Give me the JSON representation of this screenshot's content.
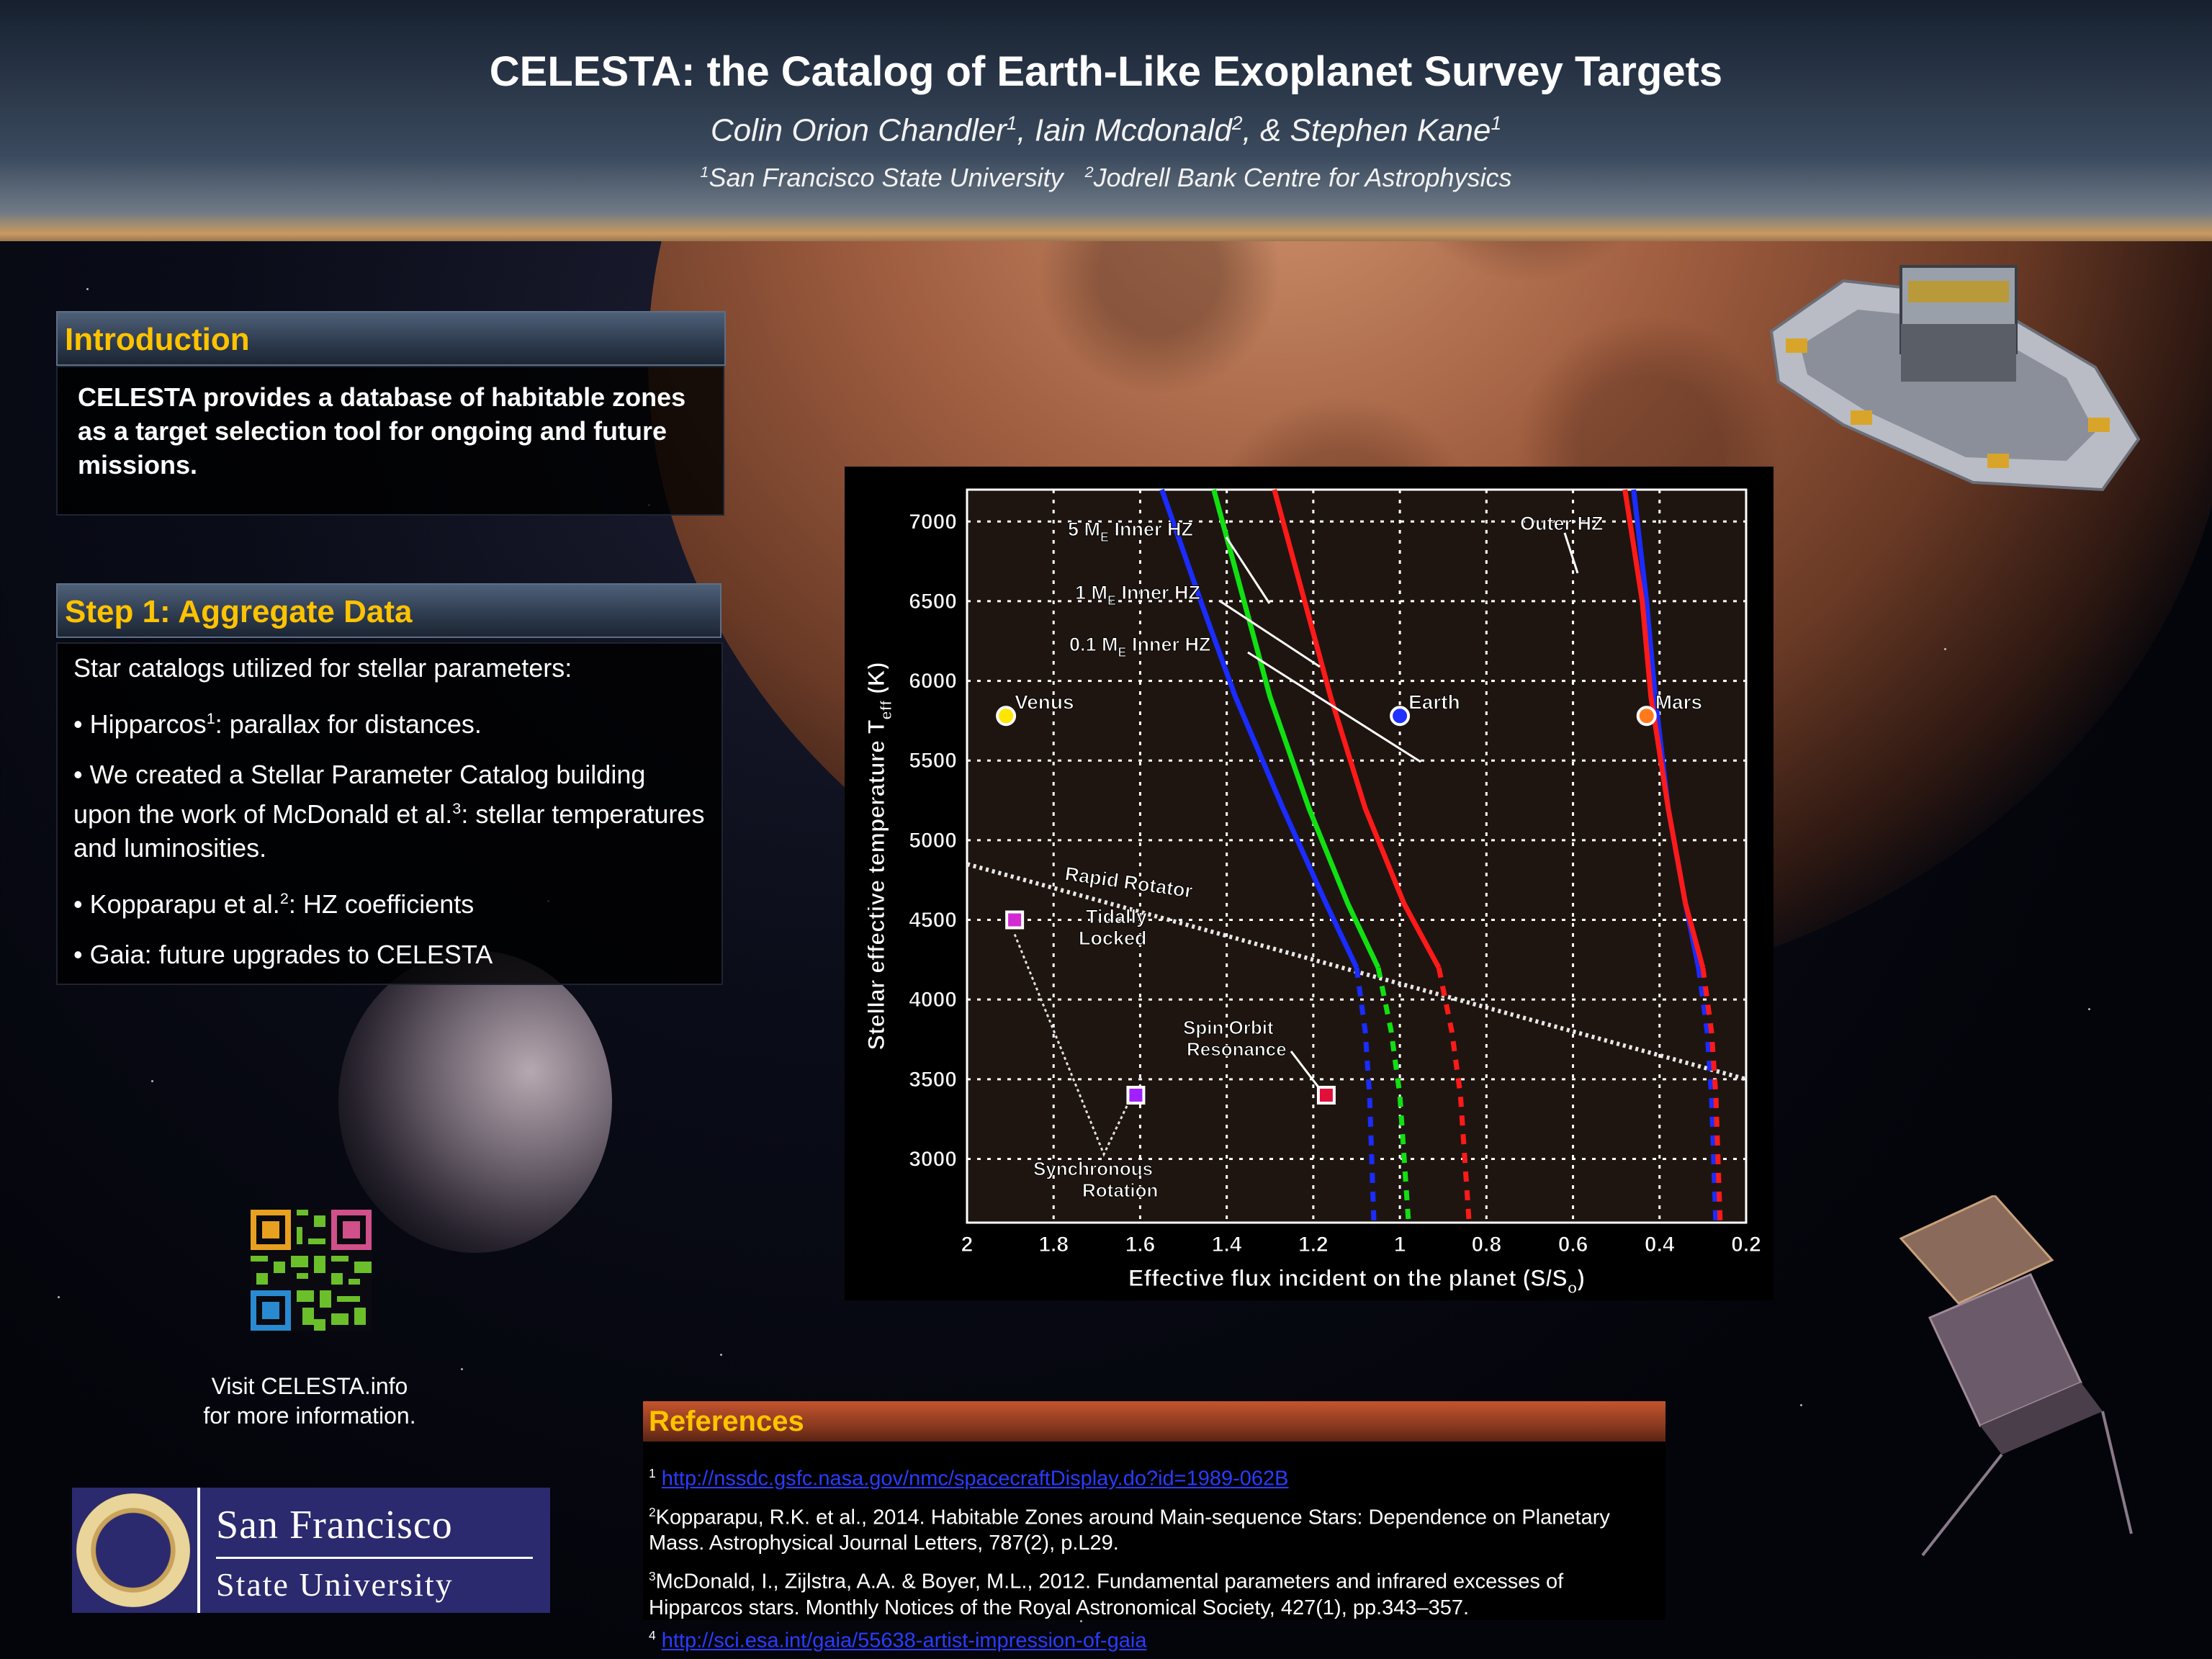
{
  "header": {
    "title": "CELESTA: the Catalog of Earth-Like Exoplanet Survey Targets",
    "author1": "Colin Orion Chandler",
    "author1_sup": "1",
    "author2": ", Iain Mcdonald",
    "author2_sup": "2",
    "author3": ", & Stephen Kane",
    "author3_sup": "1",
    "affil1_sup": "1",
    "affil1": "San Francisco State University",
    "affil2_sup": "2",
    "affil2": "Jodrell Bank Centre for Astrophysics"
  },
  "introduction": {
    "heading": "Introduction",
    "text": "CELESTA provides a database of habitable zones as a target selection tool for ongoing and future missions."
  },
  "step1": {
    "heading": "Step 1: Aggregate Data",
    "items": [
      {
        "pre": "Star catalogs utilized for stellar parameters:",
        "sup": "",
        "post": ""
      },
      {
        "pre": "• Hipparcos",
        "sup": "1",
        "post": ": parallax for distances."
      },
      {
        "pre": "• We created a Stellar Parameter Catalog building upon the work of McDonald et al.",
        "sup": "3",
        "post": ": stellar temperatures and luminosities."
      },
      {
        "pre": "• Kopparapu et al.",
        "sup": "2",
        "post": ": HZ coefficients"
      },
      {
        "pre": "• Gaia: future upgrades to CELESTA",
        "sup": "",
        "post": ""
      }
    ]
  },
  "visit": {
    "line1": "Visit CELESTA.info",
    "line2": "for more information."
  },
  "logo": {
    "line1": "San Francisco",
    "line2": "State University"
  },
  "references": {
    "heading": "References",
    "items": [
      {
        "sup": "1",
        "text": "",
        "link": "http://nssdc.gsfc.nasa.gov/nmc/spacecraftDisplay.do?id=1989-062B"
      },
      {
        "sup": "2",
        "text": "Kopparapu, R.K. et al., 2014. Habitable Zones around Main-sequence Stars: Dependence on Planetary Mass. Astrophysical Journal Letters, 787(2), p.L29.",
        "link": ""
      },
      {
        "sup": "3",
        "text": "McDonald, I., Zijlstra, A.A. & Boyer, M.L., 2012. Fundamental parameters and infrared excesses of Hipparcos stars. Monthly Notices of the Royal Astronomical Society, 427(1), pp.343–357.",
        "link": ""
      },
      {
        "sup": "4",
        "text": "",
        "link": "http://sci.esa.int/gaia/55638-artist-impression-of-gaia"
      }
    ]
  },
  "colors": {
    "heading_accent": "#ffc300",
    "earth": "#2030ff",
    "venus": "#ffe600",
    "mars": "#ff7a1a"
  },
  "chart_data": {
    "type": "line",
    "xlabel": "Effective flux incident on the planet (S/S",
    "xlabel_sub": "o",
    "xlabel_end": ")",
    "ylabel": "Stellar effective temperature T",
    "ylabel_sub": "eff",
    "ylabel_end": " (K)",
    "xlim": [
      2,
      0.2
    ],
    "ylim": [
      2600,
      7200
    ],
    "xticks": [
      "2",
      "1.8",
      "1.6",
      "1.4",
      "1.2",
      "1",
      "0.8",
      "0.6",
      "0.4",
      "0.2"
    ],
    "yticks": [
      "3000",
      "3500",
      "4000",
      "4500",
      "5000",
      "5500",
      "6000",
      "6500",
      "7000"
    ],
    "xtick_values": [
      2,
      1.8,
      1.6,
      1.4,
      1.2,
      1,
      0.8,
      0.6,
      0.4,
      0.2
    ],
    "ytick_values": [
      3000,
      3500,
      4000,
      4500,
      5000,
      5500,
      6000,
      6500,
      7000
    ],
    "series": [
      {
        "name": "5 ME Inner HZ",
        "color": "#1a2cff",
        "points": [
          [
            1.55,
            7200
          ],
          [
            1.46,
            6500
          ],
          [
            1.38,
            5900
          ],
          [
            1.27,
            5200
          ],
          [
            1.17,
            4600
          ],
          [
            1.1,
            4200
          ],
          [
            1.08,
            3800
          ],
          [
            1.07,
            3400
          ],
          [
            1.06,
            2600
          ]
        ]
      },
      {
        "name": "1 ME Inner HZ",
        "color": "#11e011",
        "points": [
          [
            1.43,
            7200
          ],
          [
            1.36,
            6500
          ],
          [
            1.3,
            5900
          ],
          [
            1.21,
            5200
          ],
          [
            1.12,
            4600
          ],
          [
            1.05,
            4200
          ],
          [
            1.02,
            3800
          ],
          [
            1.0,
            3400
          ],
          [
            0.98,
            2600
          ]
        ]
      },
      {
        "name": "0.1 ME Inner HZ",
        "color": "#ff1a1a",
        "points": [
          [
            1.29,
            7200
          ],
          [
            1.22,
            6500
          ],
          [
            1.16,
            5900
          ],
          [
            1.08,
            5200
          ],
          [
            0.99,
            4600
          ],
          [
            0.91,
            4200
          ],
          [
            0.88,
            3800
          ],
          [
            0.86,
            3400
          ],
          [
            0.84,
            2600
          ]
        ]
      },
      {
        "name": "Outer HZ (blue)",
        "color": "#1a2cff",
        "points": [
          [
            0.46,
            7200
          ],
          [
            0.43,
            6500
          ],
          [
            0.41,
            5900
          ],
          [
            0.38,
            5200
          ],
          [
            0.34,
            4600
          ],
          [
            0.31,
            4200
          ],
          [
            0.29,
            3800
          ],
          [
            0.28,
            3400
          ],
          [
            0.27,
            2600
          ]
        ]
      },
      {
        "name": "Outer HZ (red)",
        "color": "#ff1a1a",
        "points": [
          [
            0.48,
            7200
          ],
          [
            0.44,
            6500
          ],
          [
            0.42,
            5900
          ],
          [
            0.38,
            5200
          ],
          [
            0.34,
            4600
          ],
          [
            0.3,
            4200
          ],
          [
            0.28,
            3800
          ],
          [
            0.27,
            3400
          ],
          [
            0.26,
            2600
          ]
        ]
      }
    ],
    "tidal_line": [
      [
        2,
        4850
      ],
      [
        0.2,
        3500
      ]
    ],
    "planets": [
      {
        "name": "Venus",
        "x": 1.91,
        "y": 5780,
        "color": "#ffe600"
      },
      {
        "name": "Earth",
        "x": 1.0,
        "y": 5780,
        "color": "#2030ff"
      },
      {
        "name": "Mars",
        "x": 0.43,
        "y": 5780,
        "color": "#ff7a1a"
      }
    ],
    "squares": [
      {
        "x": 1.89,
        "y": 4500,
        "color": "#d22ad2"
      },
      {
        "x": 1.61,
        "y": 3400,
        "color": "#a020ff"
      },
      {
        "x": 1.17,
        "y": 3400,
        "color": "#e0103a"
      }
    ],
    "annotations": [
      "5 ME Inner HZ",
      "1 ME Inner HZ",
      "0.1 ME Inner HZ",
      "Outer HZ",
      "Rapid Rotator",
      "Tidally Locked",
      "Spin Orbit Resonance",
      "Synchronous Rotation"
    ],
    "annotation_parts": {
      "five_pre": "5 M",
      "one_pre": "1 M",
      "tenth_pre": "0.1 M",
      "sub_e": "E",
      "inner_post": " Inner HZ",
      "outer": "Outer HZ",
      "rapid": "Rapid Rotator",
      "tidal1": "Tidally",
      "tidal2": "Locked",
      "spin1": "Spin  Orbit",
      "spin2": "Resonance",
      "sync1": "Synchronous",
      "sync2": "Rotation"
    },
    "grid": true
  }
}
